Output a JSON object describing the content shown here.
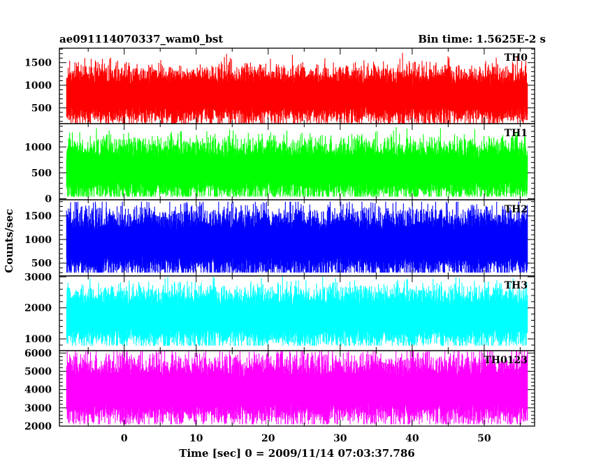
{
  "header": {
    "left": "ae091114070337_wam0_bst",
    "right": "Bin time: 1.5625E-2 s"
  },
  "chart_data": {
    "type": "line",
    "title": "ae091114070337_wam0_bst",
    "subtitle": "Bin time: 1.5625E-2 s",
    "xlabel": "Time [sec] 0 = 2009/11/14 07:03:37.786",
    "ylabel": "Counts/sec",
    "xlim": [
      -9,
      57
    ],
    "x_data_range": [
      -8,
      56
    ],
    "x_ticks": [
      0,
      10,
      20,
      30,
      40,
      50
    ],
    "x_tick_labels": [
      "0",
      "10",
      "20",
      "30",
      "40",
      "50"
    ],
    "panels": [
      {
        "name": "TH0",
        "color": "#ff0000",
        "ylim": [
          150,
          1820
        ],
        "y_ticks": [
          500,
          1000,
          1500
        ],
        "y_tick_labels": [
          "500",
          "1000",
          "1500"
        ],
        "baseline": 800,
        "spread": 220,
        "min": 120,
        "max": 1780
      },
      {
        "name": "TH1",
        "color": "#00ff00",
        "ylim": [
          -20,
          1450
        ],
        "y_ticks": [
          0,
          500,
          1000
        ],
        "y_tick_labels": [
          "0",
          "500",
          "1000"
        ],
        "baseline": 590,
        "spread": 200,
        "min": 40,
        "max": 1400
      },
      {
        "name": "TH2",
        "color": "#0000ff",
        "ylim": [
          230,
          1840
        ],
        "y_ticks": [
          500,
          1000,
          1500
        ],
        "y_tick_labels": [
          "500",
          "1000",
          "1500"
        ],
        "baseline": 950,
        "spread": 250,
        "min": 300,
        "max": 1800
      },
      {
        "name": "TH3",
        "color": "#00ffff",
        "ylim": [
          620,
          3030
        ],
        "y_ticks": [
          1000,
          2000,
          3000
        ],
        "y_tick_labels": [
          "1000",
          "2000",
          "3000"
        ],
        "baseline": 1750,
        "spread": 330,
        "min": 780,
        "max": 3000
      },
      {
        "name": "TH0123",
        "color": "#ff00ff",
        "ylim": [
          2000,
          6130
        ],
        "y_ticks": [
          2000,
          3000,
          4000,
          5000,
          6000
        ],
        "y_tick_labels": [
          "2000",
          "3000",
          "4000",
          "5000",
          "6000"
        ],
        "baseline": 4050,
        "spread": 650,
        "min": 2100,
        "max": 6100
      }
    ]
  }
}
